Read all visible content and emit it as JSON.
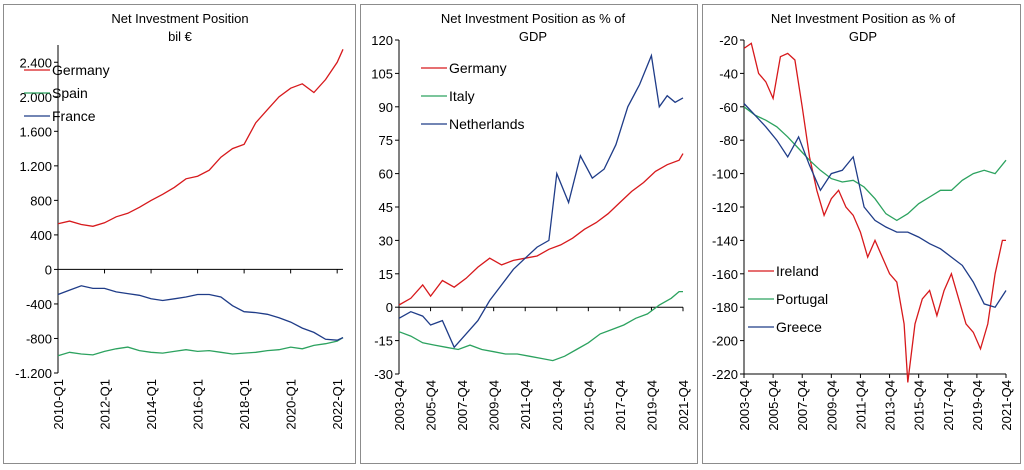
{
  "chart_data": [
    {
      "type": "line",
      "title": "Net Investment Position",
      "subtitle": "bil €",
      "xlabel": "",
      "ylabel": "",
      "ylim": [
        -1200,
        2600
      ],
      "yticks": [
        -1200,
        -800,
        -400,
        0,
        400,
        800,
        1200,
        1600,
        2000,
        2400
      ],
      "ytick_labels": [
        "-1.200",
        "-800",
        "-400",
        "0",
        "400",
        "800",
        "1.200",
        "1.600",
        "2.000",
        "2.400"
      ],
      "xlim": [
        2010,
        2022.25
      ],
      "xtick_labels": [
        "2010-Q1",
        "2012-Q1",
        "2014-Q1",
        "2016-Q1",
        "2018-Q1",
        "2020-Q1",
        "2022-Q1"
      ],
      "xtick_values": [
        2010,
        2012,
        2014,
        2016,
        2018,
        2020,
        2022
      ],
      "legend_position": "top-left",
      "grid": false,
      "series": [
        {
          "name": "Germany",
          "color": "#d7191c",
          "x": [
            2010,
            2010.5,
            2011,
            2011.5,
            2012,
            2012.5,
            2013,
            2013.5,
            2014,
            2014.5,
            2015,
            2015.5,
            2016,
            2016.5,
            2017,
            2017.5,
            2018,
            2018.5,
            2019,
            2019.5,
            2020,
            2020.5,
            2021,
            2021.5,
            2022,
            2022.25
          ],
          "y": [
            530,
            560,
            520,
            500,
            540,
            610,
            650,
            720,
            800,
            870,
            950,
            1050,
            1080,
            1150,
            1300,
            1400,
            1450,
            1700,
            1850,
            2000,
            2100,
            2150,
            2050,
            2200,
            2400,
            2550
          ]
        },
        {
          "name": "Spain",
          "color": "#2ca25f",
          "x": [
            2010,
            2010.5,
            2011,
            2011.5,
            2012,
            2012.5,
            2013,
            2013.5,
            2014,
            2014.5,
            2015,
            2015.5,
            2016,
            2016.5,
            2017,
            2017.5,
            2018,
            2018.5,
            2019,
            2019.5,
            2020,
            2020.5,
            2021,
            2021.5,
            2022,
            2022.25
          ],
          "y": [
            -1000,
            -960,
            -980,
            -990,
            -950,
            -920,
            -900,
            -940,
            -960,
            -970,
            -950,
            -930,
            -950,
            -940,
            -960,
            -980,
            -970,
            -960,
            -940,
            -930,
            -900,
            -920,
            -880,
            -860,
            -830,
            -790
          ]
        },
        {
          "name": "France",
          "color": "#1f3c88",
          "x": [
            2010,
            2010.5,
            2011,
            2011.5,
            2012,
            2012.5,
            2013,
            2013.5,
            2014,
            2014.5,
            2015,
            2015.5,
            2016,
            2016.5,
            2017,
            2017.5,
            2018,
            2018.5,
            2019,
            2019.5,
            2020,
            2020.5,
            2021,
            2021.5,
            2022,
            2022.25
          ],
          "y": [
            -290,
            -240,
            -190,
            -220,
            -220,
            -260,
            -280,
            -300,
            -340,
            -360,
            -340,
            -320,
            -290,
            -290,
            -320,
            -420,
            -490,
            -500,
            -520,
            -560,
            -610,
            -680,
            -730,
            -810,
            -820,
            -790
          ]
        }
      ]
    },
    {
      "type": "line",
      "title": "Net Investment Position as % of",
      "subtitle": "GDP",
      "xlabel": "",
      "ylabel": "",
      "ylim": [
        -30,
        120
      ],
      "yticks": [
        -30,
        -15,
        0,
        15,
        30,
        45,
        60,
        75,
        90,
        105,
        120
      ],
      "ytick_labels": [
        "-30",
        "-15",
        "0",
        "15",
        "30",
        "45",
        "60",
        "75",
        "90",
        "105",
        "120"
      ],
      "xlim": [
        2003.75,
        2021.75
      ],
      "xtick_labels": [
        "2003-Q4",
        "2005-Q4",
        "2007-Q4",
        "2009-Q4",
        "2011-Q4",
        "2013-Q4",
        "2015-Q4",
        "2017-Q4",
        "2019-Q4",
        "2021-Q4"
      ],
      "xtick_values": [
        2003.75,
        2005.75,
        2007.75,
        2009.75,
        2011.75,
        2013.75,
        2015.75,
        2017.75,
        2019.75,
        2021.75
      ],
      "legend_position": "top-left",
      "grid": false,
      "series": [
        {
          "name": "Germany",
          "color": "#d7191c",
          "x": [
            2003.75,
            2004.5,
            2005.25,
            2005.75,
            2006.5,
            2007.25,
            2008,
            2008.75,
            2009.5,
            2010.25,
            2011,
            2011.75,
            2012.5,
            2013.25,
            2014,
            2014.75,
            2015.5,
            2016.25,
            2017,
            2017.75,
            2018.5,
            2019.25,
            2020,
            2020.75,
            2021.5,
            2021.75
          ],
          "y": [
            1,
            4,
            10,
            5,
            12,
            9,
            13,
            18,
            22,
            19,
            21,
            22,
            23,
            26,
            28,
            31,
            35,
            38,
            42,
            47,
            52,
            56,
            61,
            64,
            66,
            69
          ]
        },
        {
          "name": "Italy",
          "color": "#2ca25f",
          "x": [
            2003.75,
            2004.5,
            2005.25,
            2006,
            2006.75,
            2007.5,
            2008.25,
            2009,
            2009.75,
            2010.5,
            2011.25,
            2012,
            2012.75,
            2013.5,
            2014.25,
            2015,
            2015.75,
            2016.5,
            2017.25,
            2018,
            2018.75,
            2019.5,
            2020.25,
            2021,
            2021.5,
            2021.75
          ],
          "y": [
            -11,
            -13,
            -16,
            -17,
            -18,
            -19,
            -17,
            -19,
            -20,
            -21,
            -21,
            -22,
            -23,
            -24,
            -22,
            -19,
            -16,
            -12,
            -10,
            -8,
            -5,
            -3,
            1,
            4,
            7,
            7
          ]
        },
        {
          "name": "Netherlands",
          "color": "#1f3c88",
          "x": [
            2003.75,
            2004.5,
            2005.25,
            2005.75,
            2006.5,
            2007.25,
            2008,
            2008.75,
            2009.5,
            2010.25,
            2011,
            2011.75,
            2012.5,
            2013.25,
            2013.75,
            2014.5,
            2015.25,
            2016,
            2016.75,
            2017.5,
            2018.25,
            2019,
            2019.75,
            2020.25,
            2020.75,
            2021.25,
            2021.75
          ],
          "y": [
            -5,
            -2,
            -4,
            -8,
            -6,
            -18,
            -12,
            -6,
            3,
            10,
            17,
            22,
            27,
            30,
            60,
            47,
            68,
            58,
            62,
            73,
            90,
            100,
            113,
            90,
            95,
            92,
            94
          ]
        }
      ]
    },
    {
      "type": "line",
      "title": "Net Investment Position as % of",
      "subtitle": "GDP",
      "xlabel": "",
      "ylabel": "",
      "ylim": [
        -220,
        -20
      ],
      "yticks": [
        -220,
        -200,
        -180,
        -160,
        -140,
        -120,
        -100,
        -80,
        -60,
        -40,
        -20
      ],
      "ytick_labels": [
        "-220",
        "-200",
        "-180",
        "-160",
        "-140",
        "-120",
        "-100",
        "-80",
        "-60",
        "-40",
        "-20"
      ],
      "xlim": [
        2003.75,
        2021.75
      ],
      "xtick_labels": [
        "2003-Q4",
        "2005-Q4",
        "2007-Q4",
        "2009-Q4",
        "2011-Q4",
        "2013-Q4",
        "2015-Q4",
        "2017-Q4",
        "2019-Q4",
        "2021-Q4"
      ],
      "xtick_values": [
        2003.75,
        2005.75,
        2007.75,
        2009.75,
        2011.75,
        2013.75,
        2015.75,
        2017.75,
        2019.75,
        2021.75
      ],
      "legend_position": "bottom-left",
      "grid": false,
      "series": [
        {
          "name": "Ireland",
          "color": "#d7191c",
          "x": [
            2003.75,
            2004.25,
            2004.75,
            2005.25,
            2005.75,
            2006.25,
            2006.75,
            2007.25,
            2007.75,
            2008.25,
            2008.75,
            2009.25,
            2009.75,
            2010.25,
            2010.75,
            2011.25,
            2011.75,
            2012.25,
            2012.75,
            2013.25,
            2013.75,
            2014.25,
            2014.75,
            2015.0,
            2015.5,
            2016.0,
            2016.5,
            2017.0,
            2017.5,
            2018.0,
            2018.5,
            2019.0,
            2019.5,
            2020.0,
            2020.5,
            2021.0,
            2021.5,
            2021.75
          ],
          "y": [
            -25,
            -22,
            -40,
            -45,
            -55,
            -30,
            -28,
            -32,
            -60,
            -90,
            -110,
            -125,
            -115,
            -110,
            -120,
            -125,
            -135,
            -150,
            -140,
            -150,
            -160,
            -165,
            -190,
            -225,
            -190,
            -175,
            -170,
            -185,
            -170,
            -160,
            -175,
            -190,
            -195,
            -205,
            -190,
            -160,
            -140,
            -140
          ]
        },
        {
          "name": "Portugal",
          "color": "#2ca25f",
          "x": [
            2003.75,
            2004.5,
            2005.25,
            2006,
            2006.75,
            2007.5,
            2008.25,
            2009,
            2009.75,
            2010.5,
            2011.25,
            2012,
            2012.75,
            2013.5,
            2014.25,
            2015,
            2015.75,
            2016.5,
            2017.25,
            2018,
            2018.75,
            2019.5,
            2020.25,
            2021,
            2021.75
          ],
          "y": [
            -60,
            -65,
            -68,
            -72,
            -78,
            -85,
            -92,
            -98,
            -103,
            -105,
            -104,
            -108,
            -115,
            -124,
            -128,
            -124,
            -118,
            -114,
            -110,
            -110,
            -104,
            -100,
            -98,
            -100,
            -92
          ]
        },
        {
          "name": "Greece",
          "color": "#1f3c88",
          "x": [
            2003.75,
            2004.5,
            2005.25,
            2006,
            2006.75,
            2007.5,
            2008.25,
            2009,
            2009.75,
            2010.5,
            2011.25,
            2012,
            2012.75,
            2013.5,
            2014.25,
            2015,
            2015.75,
            2016.5,
            2017.25,
            2018,
            2018.75,
            2019.5,
            2020.25,
            2021,
            2021.75
          ],
          "y": [
            -58,
            -65,
            -72,
            -80,
            -90,
            -78,
            -95,
            -110,
            -100,
            -98,
            -90,
            -120,
            -128,
            -132,
            -135,
            -135,
            -138,
            -142,
            -145,
            -150,
            -155,
            -165,
            -178,
            -180,
            -170
          ]
        }
      ]
    }
  ]
}
